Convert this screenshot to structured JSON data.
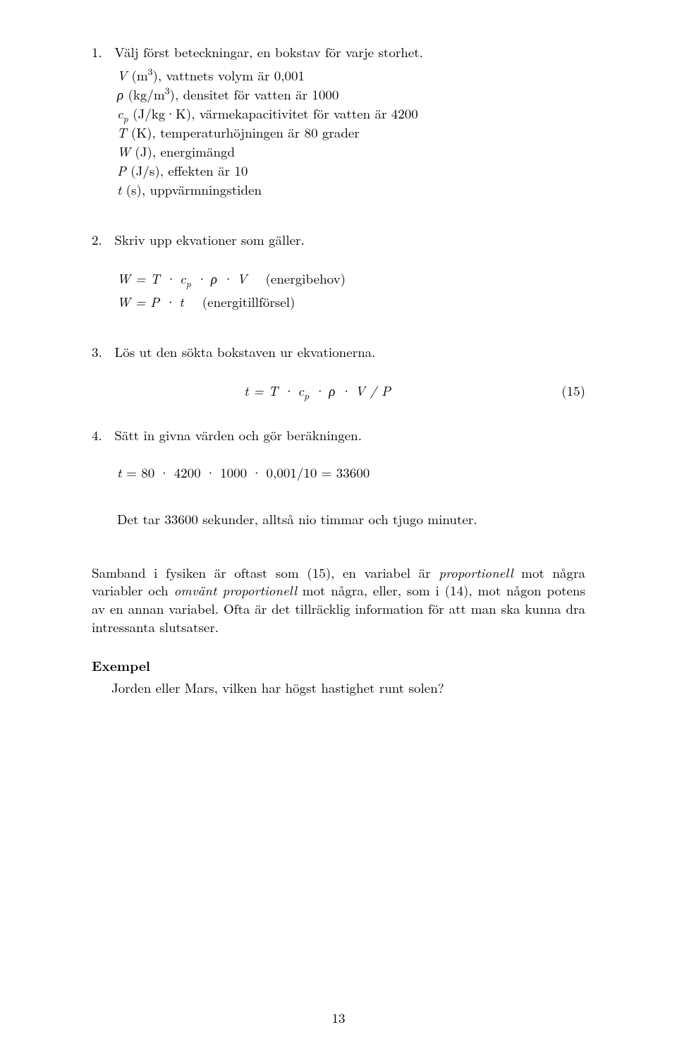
{
  "step1": {
    "number": "1.",
    "text": "Välj först beteckningar, en bokstav för varje storhet.",
    "defs": [
      {
        "sym_html": "<span class='it'>V</span> (m<sup>3</sup>), ",
        "desc": "vattnets volym är 0,001"
      },
      {
        "sym_html": "<span class='it'>ρ</span> (kg/m<sup>3</sup>), ",
        "desc": "densitet för vatten är 1000"
      },
      {
        "sym_html": "<span class='it'>c<sub>p</sub></span> (J/kg·K), ",
        "desc": "värmekapacitivitet för vatten är 4200"
      },
      {
        "sym_html": "<span class='it'>T</span> (K), ",
        "desc": "temperaturhöjningen är 80 grader"
      },
      {
        "sym_html": "<span class='it'>W</span> (J), ",
        "desc": "energimängd"
      },
      {
        "sym_html": "<span class='it'>P</span> (J/s), ",
        "desc": "effekten är 10"
      },
      {
        "sym_html": "<span class='it'>t</span> (s), ",
        "desc": "uppvärmningstiden"
      }
    ]
  },
  "step2": {
    "number": "2.",
    "text": "Skriv upp ekvationer som gäller.",
    "eq1": "W = T · c<sub>p</sub> · ρ · V &nbsp;&nbsp;<span class='rm'>(energibehov)</span>",
    "eq2": "W = P · t &nbsp;&nbsp;<span class='rm'>(energitillförsel)</span>"
  },
  "step3": {
    "number": "3.",
    "text": "Lös ut den sökta bokstaven ur ekvationerna.",
    "eq": "t = T · c<sub>p</sub> · ρ · V / P",
    "eqnum": "(15)"
  },
  "step4": {
    "number": "4.",
    "text": "Sätt in givna värden och gör beräkningen.",
    "calc": "t <span class='rm'>= 80 · 4200 · 1000 · 0,001/10 = 33600</span>",
    "conclusion": "Det tar 33600 sekunder, alltså nio timmar och tjugo minuter."
  },
  "para1": "Samband i fysiken är oftast som (15), en variabel är <span class='it'>proportionell</span> mot några variabler och <span class='it'>omvänt proportionell</span> mot några, eller, som i (14), mot någon potens av en annan variabel. Ofta är det tillräcklig information för att man ska kunna dra intressanta slutsatser.",
  "example_heading": "Exempel",
  "example_body": "Jorden eller Mars, vilken har högst hastighet runt solen?",
  "page_number": "13"
}
